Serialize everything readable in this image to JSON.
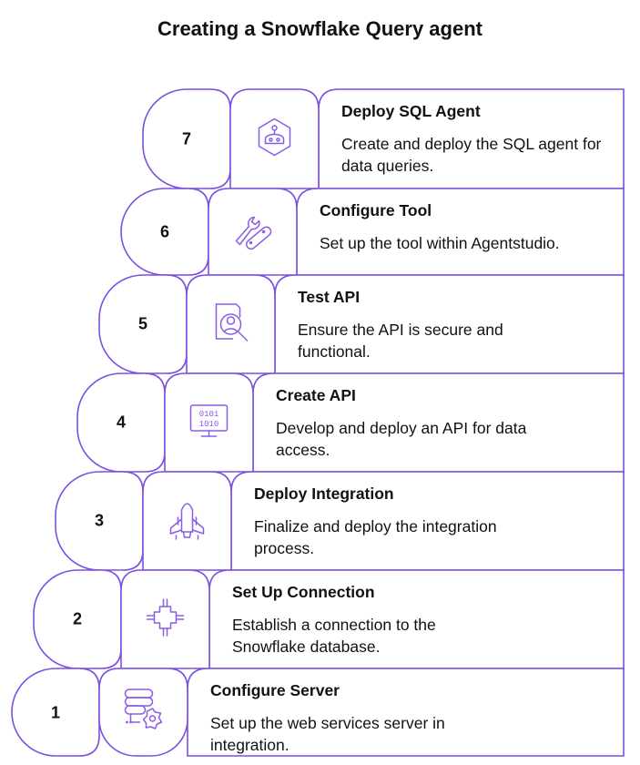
{
  "title": "Creating a Snowflake Query agent",
  "colors": {
    "stroke": "#7b4fe0",
    "icon": "#8a5be8",
    "text": "#111111"
  },
  "steps": [
    {
      "number": "7",
      "title": "Deploy SQL Agent",
      "description": "Create and deploy the SQL agent for data queries.",
      "icon": "robot-hexagon-icon"
    },
    {
      "number": "6",
      "title": "Configure Tool",
      "description": "Set up the tool within Agentstudio.",
      "icon": "wrench-tool-icon"
    },
    {
      "number": "5",
      "title": "Test API",
      "description": "Ensure the API is secure and functional.",
      "icon": "inspect-search-icon"
    },
    {
      "number": "4",
      "title": "Create API",
      "description": "Develop and deploy an API for data access.",
      "icon": "binary-monitor-icon"
    },
    {
      "number": "3",
      "title": "Deploy Integration",
      "description": "Finalize and deploy the integration process.",
      "icon": "rocket-icon"
    },
    {
      "number": "2",
      "title": "Set Up Connection",
      "description": "Establish a connection to the Snowflake database.",
      "icon": "chip-connection-icon"
    },
    {
      "number": "1",
      "title": "Configure Server",
      "description": "Set up the web services server in integration.",
      "icon": "server-gear-icon"
    }
  ]
}
